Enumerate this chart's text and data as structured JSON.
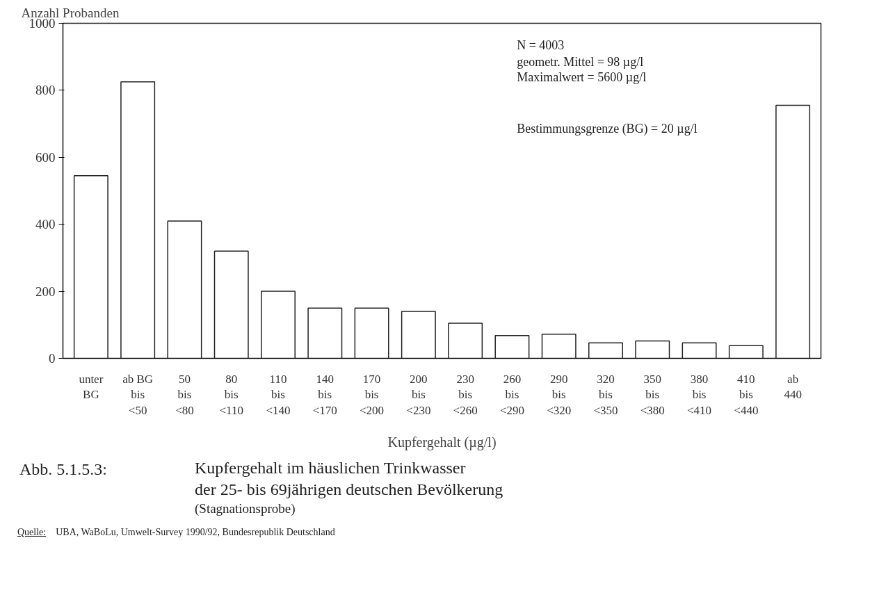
{
  "chart_data": {
    "type": "bar",
    "title": "Kupfergehalt im häuslichen Trinkwasser\nder 25- bis 69jährigen deutschen Bevölkerung",
    "subtitle": "(Stagnationsprobe)",
    "ylabel": "Anzahl Probanden",
    "xlabel": "Kupfergehalt (µg/l)",
    "categories": [
      "unter\nBG",
      "ab BG\nbis\n<50",
      "50\nbis\n<80",
      "80\nbis\n<110",
      "110\nbis\n<140",
      "140\nbis\n<170",
      "170\nbis\n<200",
      "200\nbis\n<230",
      "230\nbis\n<260",
      "260\nbis\n<290",
      "290\nbis\n<320",
      "320\nbis\n<350",
      "350\nbis\n<380",
      "380\nbis\n<410",
      "410\nbis\n<440",
      "ab\n440"
    ],
    "values": [
      545,
      825,
      410,
      320,
      200,
      150,
      150,
      140,
      105,
      68,
      72,
      46,
      52,
      46,
      38,
      755
    ],
    "color": "#ffffff",
    "ylim": [
      0,
      1000
    ],
    "yticks": [
      0,
      200,
      400,
      600,
      800,
      1000
    ],
    "grid": false,
    "annotations": [
      "N = 4003",
      "geometr. Mittel = 98 µg/l",
      "Maximalwert = 5600 µg/l",
      "Bestimmungsgrenze (BG) = 20 µg/l",
      "Abb. 5.1.5.3:",
      "Quelle:",
      "UBA, WaBoLu, Umwelt-Survey 1990/92, Bundesrepublik Deutschland"
    ]
  }
}
